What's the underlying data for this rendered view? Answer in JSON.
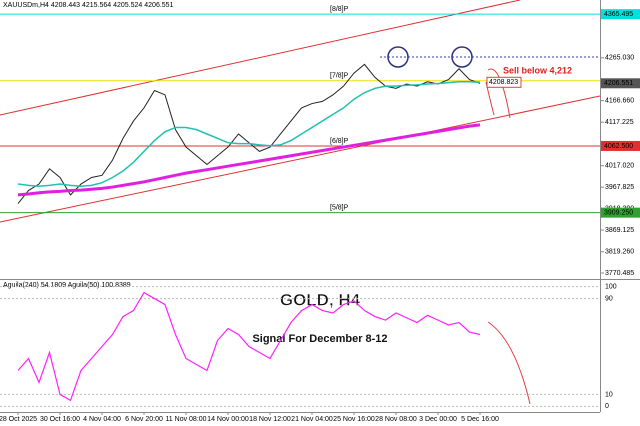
{
  "chart_data": {
    "type": "line",
    "title": "XAUUSDm,H4 4208.443 4215.564 4205.524 4206.551",
    "categories": [
      "28 Oct 2025",
      null,
      null,
      null,
      "30 Oct 16:00",
      null,
      null,
      null,
      "4 Nov 04:00",
      null,
      null,
      null,
      "6 Nov 20:00",
      null,
      null,
      null,
      "11 Nov 08:00",
      null,
      null,
      null,
      "14 Nov 00:00",
      null,
      null,
      null,
      "18 Nov 12:00",
      null,
      null,
      null,
      "21 Nov 04:00",
      null,
      null,
      null,
      "25 Nov 16:00",
      null,
      null,
      null,
      "28 Nov 08:00",
      null,
      null,
      null,
      "3 Dec 00:00",
      null,
      null,
      null,
      "5 Dec 16:00"
    ],
    "series": [
      {
        "name": "XAUUSDm",
        "color": "#222222",
        "values": [
          3930,
          3960,
          3975,
          4010,
          3990,
          3950,
          3975,
          3990,
          3995,
          4030,
          4080,
          4120,
          4150,
          4190,
          4180,
          4100,
          4060,
          4040,
          4020,
          4040,
          4060,
          4090,
          4070,
          4050,
          4060,
          4090,
          4120,
          4150,
          4160,
          4165,
          4180,
          4200,
          4230,
          4250,
          4220,
          4200,
          4195,
          4205,
          4200,
          4210,
          4205,
          4215,
          4240,
          4215,
          4206.551
        ]
      },
      {
        "name": "MA21",
        "color": "#20c0b0",
        "values": [
          3975,
          3972,
          3970,
          3972,
          3975,
          3972,
          3970,
          3972,
          3978,
          3990,
          4005,
          4025,
          4050,
          4075,
          4095,
          4105,
          4105,
          4100,
          4090,
          4080,
          4070,
          4068,
          4068,
          4065,
          4063,
          4065,
          4075,
          4090,
          4105,
          4120,
          4135,
          4150,
          4170,
          4185,
          4195,
          4200,
          4200,
          4202,
          4203,
          4205,
          4206,
          4208,
          4210,
          4210,
          4209
        ]
      },
      {
        "name": "MA200",
        "color": "#e020e0",
        "values": [
          3950,
          3952,
          3955,
          3957,
          3958,
          3960,
          3961,
          3963,
          3965,
          3968,
          3972,
          3976,
          3980,
          3985,
          3990,
          3995,
          4000,
          4004,
          4008,
          4012,
          4016,
          4020,
          4024,
          4028,
          4032,
          4036,
          4040,
          4044,
          4048,
          4052,
          4056,
          4060,
          4064,
          4068,
          4072,
          4076,
          4080,
          4084,
          4088,
          4092,
          4096,
          4100,
          4104,
          4108,
          4111
        ]
      }
    ],
    "ylim": [
      3759,
      4398
    ],
    "yticks": [
      {
        "value": 4265.03,
        "label": "4265.030"
      },
      {
        "value": 4166.66,
        "label": "4166.660"
      },
      {
        "value": 4117.225,
        "label": "4117.225"
      },
      {
        "value": 4017.02,
        "label": "4017.020"
      },
      {
        "value": 3967.825,
        "label": "3967.825"
      },
      {
        "value": 3918.39,
        "label": "3918.390"
      },
      {
        "value": 3869.125,
        "label": "3869.125"
      },
      {
        "value": 3819.26,
        "label": "3819.260"
      },
      {
        "value": 3770.485,
        "label": "3770.485"
      }
    ],
    "levels": [
      {
        "name": "[8/8]P",
        "value": 4365.495,
        "label": "4365.495",
        "color": "#00e0e0"
      },
      {
        "name": "[7/8]P",
        "value": 4212.5,
        "color": "#e8e000"
      },
      {
        "name": "[6/8]P",
        "value": 4062.5,
        "label": "4062.500",
        "color": "#e03030"
      },
      {
        "name": "[5/8]P",
        "value": 3909.25,
        "label": "3909.250",
        "color": "#30a030"
      }
    ],
    "current_price": {
      "value": 4206.551,
      "label": "4206.551"
    },
    "sell_level": {
      "value": 4208.823,
      "label": "4208.823"
    },
    "annotations": [
      "Sell below 4,212",
      "GOLD, H4",
      "Signal For December 8-12"
    ],
    "indicator": {
      "title": "Aguila(240) 54.1809 Aguila(50) 100.8389",
      "color": "#ff20ff",
      "values": [
        30,
        40,
        20,
        45,
        10,
        5,
        30,
        40,
        50,
        60,
        75,
        80,
        95,
        90,
        85,
        60,
        40,
        35,
        30,
        55,
        65,
        60,
        50,
        45,
        40,
        55,
        70,
        80,
        85,
        80,
        78,
        85,
        88,
        80,
        75,
        72,
        78,
        74,
        70,
        76,
        72,
        68,
        70,
        62,
        60
      ],
      "ylim": [
        -3,
        103
      ],
      "yticks": [
        100,
        90,
        10,
        0
      ]
    }
  }
}
